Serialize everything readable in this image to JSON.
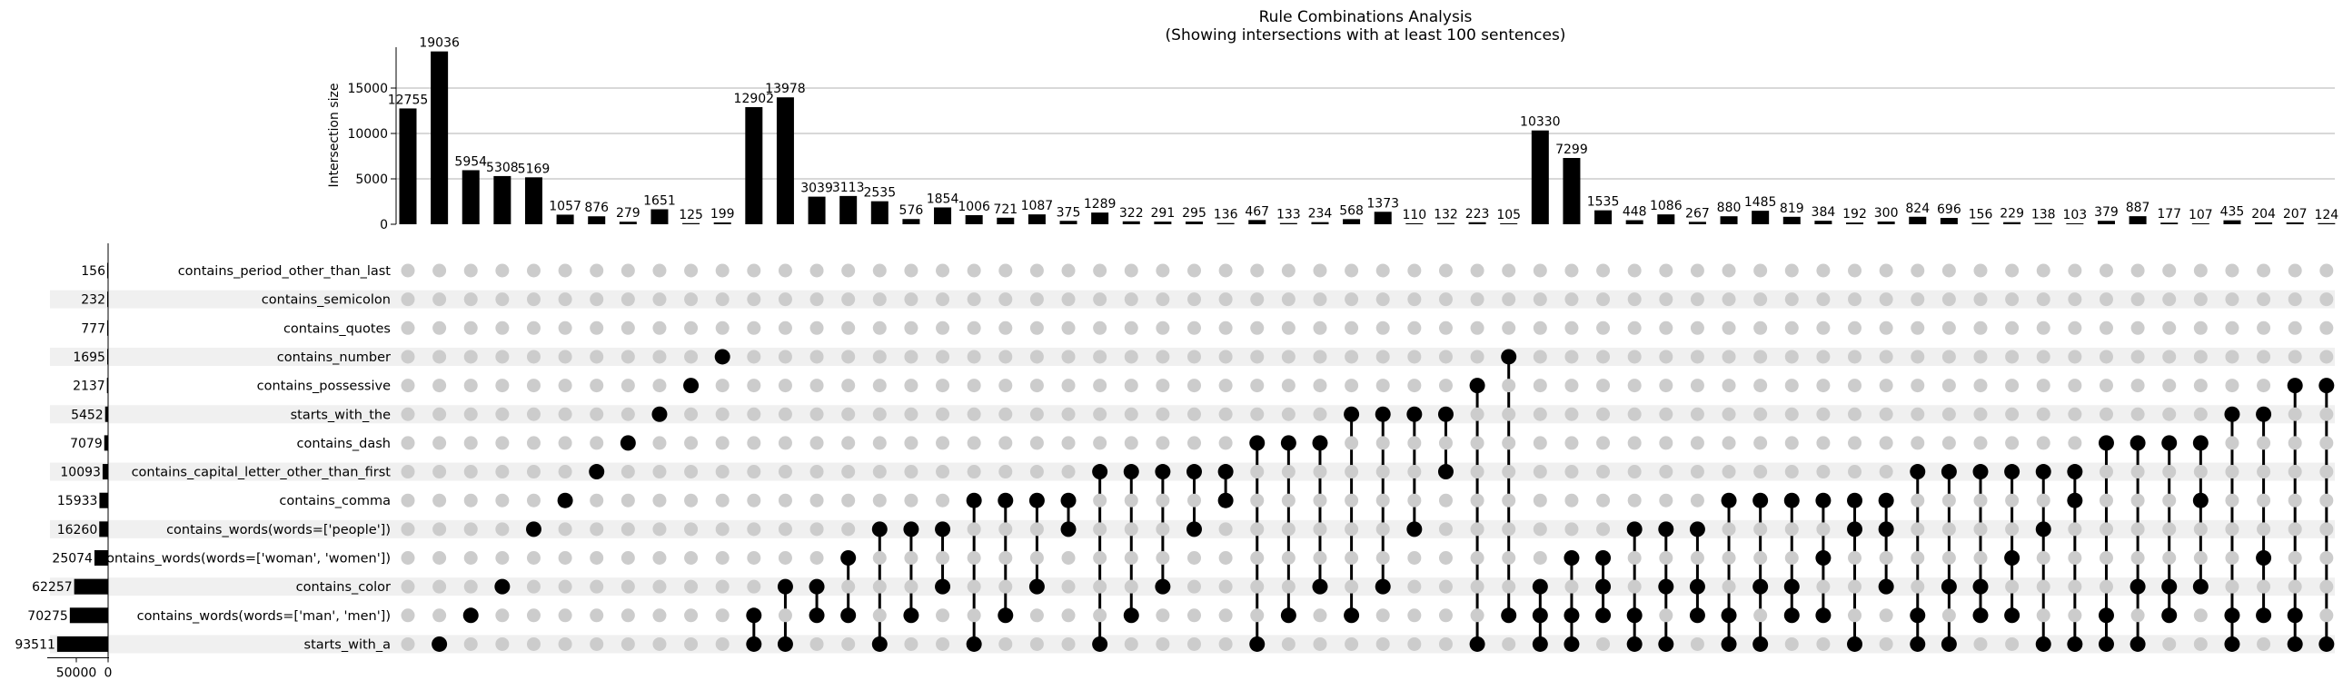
{
  "chart_data": {
    "type": "upset",
    "title": "Rule Combinations Analysis",
    "subtitle": "(Showing intersections with at least 100 sentences)",
    "ylabel": "Intersection size",
    "ylim": [
      0,
      20000
    ],
    "yticks": [
      "0",
      "5000",
      "10000",
      "15000"
    ],
    "set_size_ticks": [
      "50000",
      "0"
    ],
    "sets": [
      {
        "name": "contains_period_other_than_last",
        "size": 156
      },
      {
        "name": "contains_semicolon",
        "size": 232
      },
      {
        "name": "contains_quotes",
        "size": 777
      },
      {
        "name": "contains_number",
        "size": 1695
      },
      {
        "name": "contains_possessive",
        "size": 2137
      },
      {
        "name": "starts_with_the",
        "size": 5452
      },
      {
        "name": "contains_dash",
        "size": 7079
      },
      {
        "name": "contains_capital_letter_other_than_first",
        "size": 10093
      },
      {
        "name": "contains_comma",
        "size": 15933
      },
      {
        "name": "contains_words(words=['people'])",
        "size": 16260
      },
      {
        "name": "contains_words(words=['woman', 'women'])",
        "size": 25074
      },
      {
        "name": "contains_color",
        "size": 62257
      },
      {
        "name": "contains_words(words=['man', 'men'])",
        "size": 70275
      },
      {
        "name": "starts_with_a",
        "size": 93511
      }
    ],
    "intersections": [
      {
        "size": 12755,
        "members": []
      },
      {
        "size": 19036,
        "members": [
          13
        ]
      },
      {
        "size": 5954,
        "members": [
          12
        ]
      },
      {
        "size": 5308,
        "members": [
          11
        ]
      },
      {
        "size": 5169,
        "members": [
          9
        ]
      },
      {
        "size": 1057,
        "members": [
          8
        ]
      },
      {
        "size": 876,
        "members": [
          7
        ]
      },
      {
        "size": 279,
        "members": [
          6
        ]
      },
      {
        "size": 1651,
        "members": [
          5
        ]
      },
      {
        "size": 125,
        "members": [
          4
        ]
      },
      {
        "size": 199,
        "members": [
          3
        ]
      },
      {
        "size": 12902,
        "members": [
          12,
          13
        ]
      },
      {
        "size": 13978,
        "members": [
          11,
          13
        ]
      },
      {
        "size": 3039,
        "members": [
          11,
          12
        ]
      },
      {
        "size": 3113,
        "members": [
          10,
          12
        ]
      },
      {
        "size": 2535,
        "members": [
          9,
          13
        ]
      },
      {
        "size": 576,
        "members": [
          9,
          12
        ]
      },
      {
        "size": 1854,
        "members": [
          9,
          11
        ]
      },
      {
        "size": 1006,
        "members": [
          8,
          13
        ]
      },
      {
        "size": 721,
        "members": [
          8,
          12
        ]
      },
      {
        "size": 1087,
        "members": [
          8,
          11
        ]
      },
      {
        "size": 375,
        "members": [
          8,
          9
        ]
      },
      {
        "size": 1289,
        "members": [
          7,
          13
        ]
      },
      {
        "size": 322,
        "members": [
          7,
          12
        ]
      },
      {
        "size": 291,
        "members": [
          7,
          11
        ]
      },
      {
        "size": 295,
        "members": [
          7,
          9
        ]
      },
      {
        "size": 136,
        "members": [
          7,
          8
        ]
      },
      {
        "size": 467,
        "members": [
          6,
          13
        ]
      },
      {
        "size": 133,
        "members": [
          6,
          12
        ]
      },
      {
        "size": 234,
        "members": [
          6,
          11
        ]
      },
      {
        "size": 568,
        "members": [
          5,
          12
        ]
      },
      {
        "size": 1373,
        "members": [
          5,
          11
        ]
      },
      {
        "size": 110,
        "members": [
          5,
          9
        ]
      },
      {
        "size": 132,
        "members": [
          5,
          7
        ]
      },
      {
        "size": 223,
        "members": [
          4,
          13
        ]
      },
      {
        "size": 105,
        "members": [
          3,
          12
        ]
      },
      {
        "size": 10330,
        "members": [
          11,
          12,
          13
        ]
      },
      {
        "size": 7299,
        "members": [
          10,
          12,
          13
        ]
      },
      {
        "size": 1535,
        "members": [
          10,
          11,
          12
        ]
      },
      {
        "size": 448,
        "members": [
          9,
          12,
          13
        ]
      },
      {
        "size": 1086,
        "members": [
          9,
          11,
          13
        ]
      },
      {
        "size": 267,
        "members": [
          9,
          11,
          12
        ]
      },
      {
        "size": 880,
        "members": [
          8,
          12,
          13
        ]
      },
      {
        "size": 1485,
        "members": [
          8,
          11,
          13
        ]
      },
      {
        "size": 819,
        "members": [
          8,
          11,
          12
        ]
      },
      {
        "size": 384,
        "members": [
          8,
          10,
          12
        ]
      },
      {
        "size": 192,
        "members": [
          8,
          9,
          13
        ]
      },
      {
        "size": 300,
        "members": [
          8,
          9,
          11
        ]
      },
      {
        "size": 824,
        "members": [
          7,
          12,
          13
        ]
      },
      {
        "size": 696,
        "members": [
          7,
          11,
          13
        ]
      },
      {
        "size": 156,
        "members": [
          7,
          11,
          12
        ]
      },
      {
        "size": 229,
        "members": [
          7,
          10,
          12
        ]
      },
      {
        "size": 138,
        "members": [
          7,
          9,
          13
        ]
      },
      {
        "size": 103,
        "members": [
          7,
          8,
          13
        ]
      },
      {
        "size": 379,
        "members": [
          6,
          12,
          13
        ]
      },
      {
        "size": 887,
        "members": [
          6,
          11,
          13
        ]
      },
      {
        "size": 177,
        "members": [
          6,
          11,
          12
        ]
      },
      {
        "size": 107,
        "members": [
          6,
          8,
          11
        ]
      },
      {
        "size": 435,
        "members": [
          5,
          12,
          13
        ]
      },
      {
        "size": 204,
        "members": [
          5,
          10,
          12
        ]
      },
      {
        "size": 207,
        "members": [
          4,
          12,
          13
        ]
      },
      {
        "size": 124,
        "members": [
          4,
          13
        ]
      }
    ]
  },
  "colors": {
    "bar": "#000000",
    "dot_active": "#000000",
    "dot_inactive": "#cccccc",
    "stripe": "#f0f0f0",
    "grid": "#b0b0b0"
  }
}
